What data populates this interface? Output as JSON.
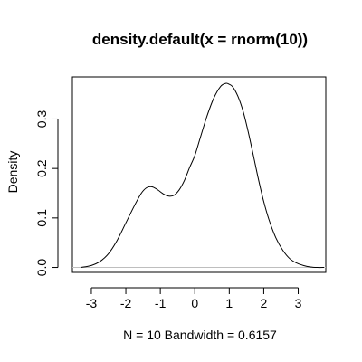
{
  "chart_data": {
    "type": "line",
    "title": "density.default(x = rnorm(10))",
    "xlabel": "N = 10   Bandwidth = 0.6157",
    "ylabel": "Density",
    "xlim": [
      -3.55,
      3.8
    ],
    "ylim": [
      -0.01,
      0.385
    ],
    "x_ticks": [
      -3,
      -2,
      -1,
      0,
      1,
      2,
      3
    ],
    "x_tick_labels": [
      "-3",
      "-2",
      "-1",
      "0",
      "1",
      "2",
      "3"
    ],
    "y_ticks": [
      0.0,
      0.1,
      0.2,
      0.3
    ],
    "y_tick_labels": [
      "0.0",
      "0.1",
      "0.2",
      "0.3"
    ],
    "zero_line": true,
    "grid": false,
    "legend": "none",
    "series": [
      {
        "x": [
          -3.3,
          -3.0,
          -2.75,
          -2.5,
          -2.25,
          -2.0,
          -1.75,
          -1.55,
          -1.4,
          -1.25,
          -1.1,
          -0.9,
          -0.75,
          -0.6,
          -0.45,
          -0.3,
          -0.15,
          0.0,
          0.15,
          0.35,
          0.55,
          0.75,
          0.9,
          1.0,
          1.1,
          1.25,
          1.4,
          1.55,
          1.7,
          1.85,
          2.0,
          2.15,
          2.35,
          2.55,
          2.75,
          2.95,
          3.15,
          3.35,
          3.55,
          3.75
        ],
        "y": [
          0.0,
          0.004,
          0.012,
          0.028,
          0.055,
          0.09,
          0.125,
          0.15,
          0.161,
          0.163,
          0.158,
          0.148,
          0.144,
          0.146,
          0.157,
          0.176,
          0.202,
          0.226,
          0.26,
          0.305,
          0.342,
          0.366,
          0.372,
          0.37,
          0.365,
          0.346,
          0.316,
          0.274,
          0.226,
          0.177,
          0.133,
          0.097,
          0.06,
          0.035,
          0.018,
          0.009,
          0.004,
          0.001,
          0.0,
          0.0
        ]
      }
    ],
    "colors": {
      "line": "#000000",
      "zero_line": "#bebebe",
      "box": "#000000",
      "background": "#ffffff"
    }
  }
}
